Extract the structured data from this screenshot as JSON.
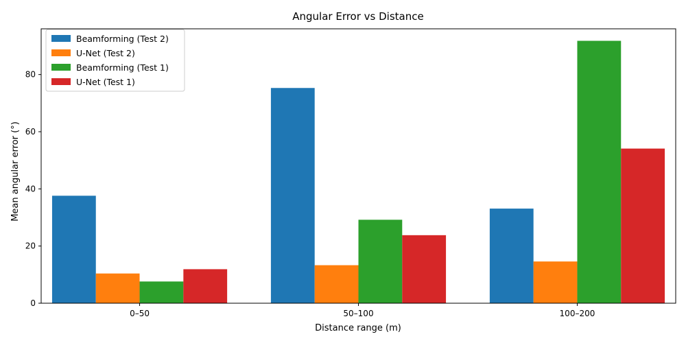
{
  "chart_data": {
    "type": "bar",
    "title": "Angular Error vs Distance",
    "xlabel": "Distance range (m)",
    "ylabel": "Mean angular error (°)",
    "categories": [
      "0–50",
      "50–100",
      "100–200"
    ],
    "ylim": [
      0,
      96
    ],
    "yticks": [
      0,
      20,
      40,
      60,
      80
    ],
    "grid": false,
    "legend_position": "top-left",
    "series": [
      {
        "name": "Beamforming (Test 2)",
        "color": "#1f77b4",
        "values": [
          37.6,
          75.3,
          33.1
        ]
      },
      {
        "name": "U-Net (Test 2)",
        "color": "#ff7f0e",
        "values": [
          10.4,
          13.3,
          14.6
        ]
      },
      {
        "name": "Beamforming (Test 1)",
        "color": "#2ca02c",
        "values": [
          7.6,
          29.2,
          91.8
        ]
      },
      {
        "name": "U-Net (Test 1)",
        "color": "#d62728",
        "values": [
          11.9,
          23.8,
          54.1
        ]
      }
    ]
  }
}
